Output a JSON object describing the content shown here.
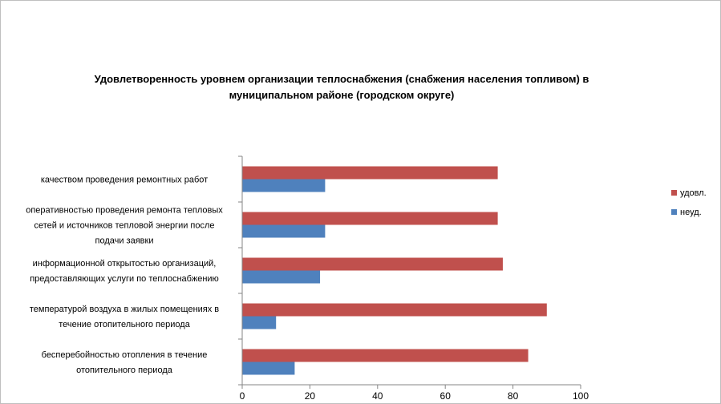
{
  "chart_data": {
    "type": "bar",
    "orientation": "horizontal",
    "title": "Удовлетворенность уровнем организации теплоснабжения (снабжения населения топливом) в муниципальном районе (городском округе)",
    "categories": [
      "качеством проведения ремонтных работ",
      "оперативностью проведения ремонта тепловых сетей и источников тепловой энергии после подачи заявки",
      "информационной открытостью организаций, предоставляющих услуги по теплоснабжению",
      "температурой воздуха в жилых помещениях в течение отопительного периода",
      "бесперебойностью отопления в течение отопительного периода"
    ],
    "category_lines": [
      [
        "качеством проведения ремонтных работ"
      ],
      [
        "оперативностью проведения ремонта тепловых",
        "сетей и источников тепловой энергии после",
        "подачи заявки"
      ],
      [
        "информационной открытостью организаций,",
        "предоставляющих услуги по теплоснабжению"
      ],
      [
        "температурой воздуха в жилых помещениях в",
        "течение отопительного периода"
      ],
      [
        "бесперебойностью отопления в течение",
        "отопительного периода"
      ]
    ],
    "series": [
      {
        "name": "удовл.",
        "color": "#c0504d",
        "values": [
          75.5,
          75.5,
          77,
          90,
          84.5
        ]
      },
      {
        "name": "неуд.",
        "color": "#4f81bd",
        "values": [
          24.5,
          24.5,
          23,
          10,
          15.5
        ]
      }
    ],
    "xlim": [
      0,
      100
    ],
    "xticks": [
      0,
      20,
      40,
      60,
      80,
      100
    ],
    "xlabel": "",
    "ylabel": "",
    "grid": false,
    "legend_position": "right"
  }
}
